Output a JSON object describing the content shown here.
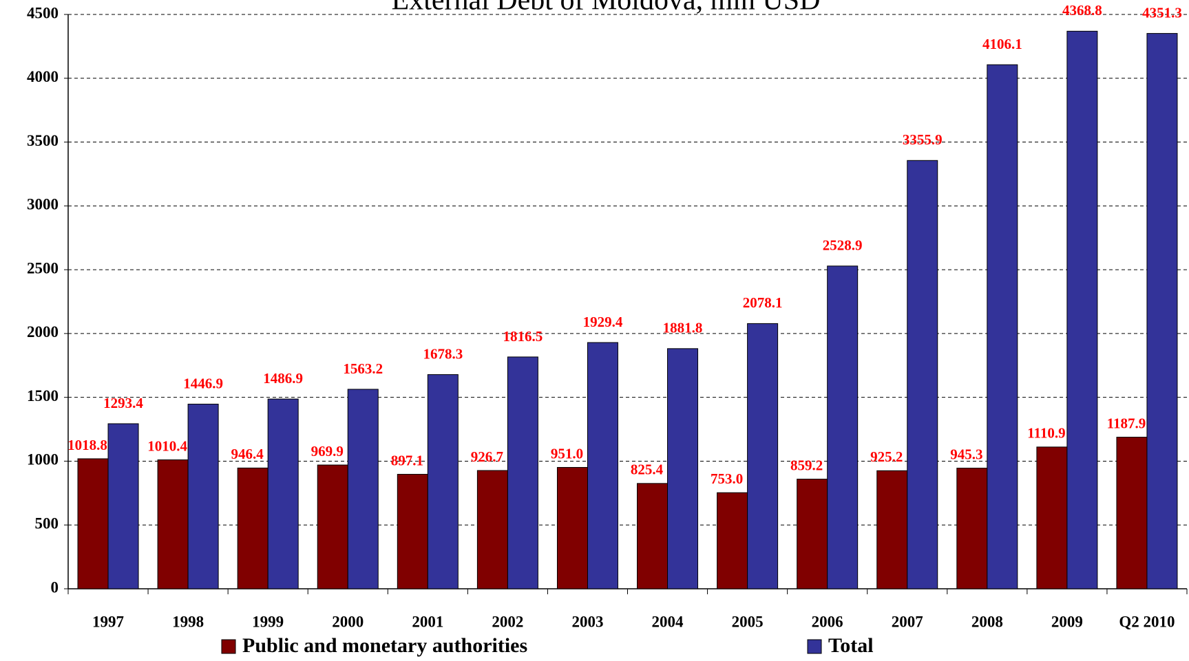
{
  "chart_data": {
    "type": "bar",
    "title": "External Debt of Moldova, mln USD",
    "categories": [
      "1997",
      "1998",
      "1999",
      "2000",
      "2001",
      "2002",
      "2003",
      "2004",
      "2005",
      "2006",
      "2007",
      "2008",
      "2009",
      "Q2 2010"
    ],
    "series": [
      {
        "name": "Public and monetary authorities",
        "color": "#800000",
        "values": [
          1018.8,
          1010.4,
          946.4,
          969.9,
          897.1,
          926.7,
          951.0,
          825.4,
          753.0,
          859.2,
          925.2,
          945.3,
          1110.9,
          1187.9
        ],
        "value_labels": [
          "1018.8",
          "1010.4",
          "946.4",
          "969.9",
          "897.1",
          "926.7",
          "951.0",
          "825.4",
          "753.0",
          "859.2",
          "925.2",
          "945.3",
          "1110.9",
          "1187.9"
        ]
      },
      {
        "name": "Total",
        "color": "#333399",
        "values": [
          1293.4,
          1446.9,
          1486.9,
          1563.2,
          1678.3,
          1816.5,
          1929.4,
          1881.8,
          2078.1,
          2528.9,
          3355.9,
          4106.1,
          4368.8,
          4351.3
        ],
        "value_labels": [
          "1293.4",
          "1446.9",
          "1486.9",
          "1563.2",
          "1678.3",
          "1816.5",
          "1929.4",
          "1881.8",
          "2078.1",
          "2528.9",
          "3355.9",
          "4106.1",
          "4368.8",
          "4351.3"
        ]
      }
    ],
    "ylim": [
      0,
      4500
    ],
    "yticks": [
      0,
      500,
      1000,
      1500,
      2000,
      2500,
      3000,
      3500,
      4000,
      4500
    ],
    "grid": true,
    "legend": "bottom"
  }
}
